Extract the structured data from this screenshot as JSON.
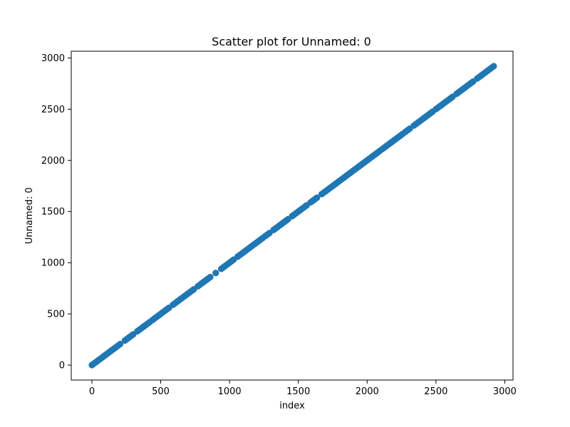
{
  "chart_data": {
    "type": "scatter",
    "title": "Scatter plot for Unnamed: 0",
    "xlabel": "index",
    "ylabel": "Unnamed: 0",
    "xlim": [
      -150,
      3060
    ],
    "ylim": [
      -146,
      3066
    ],
    "xticks": [
      0,
      500,
      1000,
      1500,
      2000,
      2500,
      3000
    ],
    "yticks": [
      0,
      500,
      1000,
      1500,
      2000,
      2500,
      3000
    ],
    "xtick_labels": [
      "0",
      "500",
      "1000",
      "1500",
      "2000",
      "2500",
      "3000"
    ],
    "ytick_labels": [
      "0",
      "500",
      "1000",
      "1500",
      "2000",
      "2500",
      "3000"
    ],
    "grid": false,
    "legend": false,
    "marker_color": "#1f77b4",
    "series": [
      {
        "points_note": "points lie on y = x",
        "x": [
          0,
          10,
          22,
          35,
          48,
          60,
          75,
          88,
          100,
          112,
          125,
          138,
          150,
          162,
          175,
          190,
          205,
          240,
          255,
          270,
          285,
          300,
          330,
          345,
          360,
          375,
          390,
          405,
          420,
          440,
          455,
          470,
          485,
          500,
          515,
          530,
          545,
          560,
          590,
          605,
          620,
          635,
          650,
          665,
          680,
          695,
          710,
          725,
          740,
          770,
          785,
          800,
          815,
          830,
          845,
          860,
          900,
          940,
          955,
          970,
          985,
          1000,
          1015,
          1030,
          1060,
          1075,
          1090,
          1105,
          1120,
          1135,
          1150,
          1165,
          1180,
          1195,
          1210,
          1225,
          1240,
          1260,
          1275,
          1290,
          1320,
          1335,
          1350,
          1365,
          1380,
          1395,
          1410,
          1425,
          1455,
          1470,
          1485,
          1500,
          1515,
          1530,
          1545,
          1560,
          1590,
          1605,
          1620,
          1635,
          1670,
          1685,
          1700,
          1715,
          1730,
          1745,
          1760,
          1775,
          1790,
          1805,
          1820,
          1835,
          1850,
          1865,
          1880,
          1895,
          1910,
          1925,
          1940,
          1955,
          1970,
          1985,
          2000,
          2015,
          2030,
          2045,
          2060,
          2075,
          2090,
          2110,
          2125,
          2140,
          2155,
          2170,
          2185,
          2200,
          2215,
          2230,
          2245,
          2260,
          2280,
          2295,
          2310,
          2340,
          2355,
          2370,
          2385,
          2400,
          2415,
          2430,
          2445,
          2460,
          2475,
          2500,
          2515,
          2530,
          2545,
          2560,
          2575,
          2590,
          2605,
          2620,
          2650,
          2665,
          2680,
          2695,
          2710,
          2725,
          2740,
          2755,
          2770,
          2800,
          2815,
          2830,
          2845,
          2860,
          2875,
          2890,
          2905,
          2920
        ],
        "y": [
          0,
          10,
          22,
          35,
          48,
          60,
          75,
          88,
          100,
          112,
          125,
          138,
          150,
          162,
          175,
          190,
          205,
          240,
          255,
          270,
          285,
          300,
          330,
          345,
          360,
          375,
          390,
          405,
          420,
          440,
          455,
          470,
          485,
          500,
          515,
          530,
          545,
          560,
          590,
          605,
          620,
          635,
          650,
          665,
          680,
          695,
          710,
          725,
          740,
          770,
          785,
          800,
          815,
          830,
          845,
          860,
          900,
          940,
          955,
          970,
          985,
          1000,
          1015,
          1030,
          1060,
          1075,
          1090,
          1105,
          1120,
          1135,
          1150,
          1165,
          1180,
          1195,
          1210,
          1225,
          1240,
          1260,
          1275,
          1290,
          1320,
          1335,
          1350,
          1365,
          1380,
          1395,
          1410,
          1425,
          1455,
          1470,
          1485,
          1500,
          1515,
          1530,
          1545,
          1560,
          1590,
          1605,
          1620,
          1635,
          1670,
          1685,
          1700,
          1715,
          1730,
          1745,
          1760,
          1775,
          1790,
          1805,
          1820,
          1835,
          1850,
          1865,
          1880,
          1895,
          1910,
          1925,
          1940,
          1955,
          1970,
          1985,
          2000,
          2015,
          2030,
          2045,
          2060,
          2075,
          2090,
          2110,
          2125,
          2140,
          2155,
          2170,
          2185,
          2200,
          2215,
          2230,
          2245,
          2260,
          2280,
          2295,
          2310,
          2340,
          2355,
          2370,
          2385,
          2400,
          2415,
          2430,
          2445,
          2460,
          2475,
          2500,
          2515,
          2530,
          2545,
          2560,
          2575,
          2590,
          2605,
          2620,
          2650,
          2665,
          2680,
          2695,
          2710,
          2725,
          2740,
          2755,
          2770,
          2800,
          2815,
          2830,
          2845,
          2860,
          2875,
          2890,
          2905,
          2920
        ]
      }
    ]
  }
}
